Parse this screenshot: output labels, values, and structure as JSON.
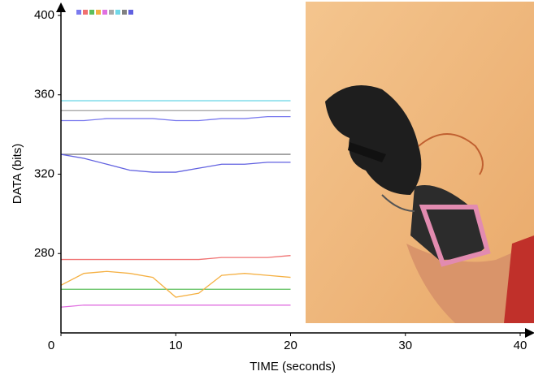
{
  "chart_data": {
    "type": "line",
    "x_label": "TIME (seconds)",
    "y_label": "DATA (bits)",
    "x": [
      0,
      2,
      4,
      6,
      8,
      10,
      12,
      14,
      16,
      18,
      20
    ],
    "series": [
      {
        "color": "#7b7bef",
        "values": [
          347,
          347,
          348,
          348,
          348,
          347,
          347,
          348,
          348,
          349,
          349
        ]
      },
      {
        "color": "#f07070",
        "values": [
          277,
          277,
          277,
          277,
          277,
          277,
          277,
          278,
          278,
          278,
          279
        ]
      },
      {
        "color": "#5cbf5c",
        "values": [
          262,
          262,
          262,
          262,
          262,
          262,
          262,
          262,
          262,
          262,
          262
        ]
      },
      {
        "color": "#f5b042",
        "values": [
          264,
          270,
          271,
          270,
          268,
          258,
          260,
          269,
          270,
          269,
          268
        ]
      },
      {
        "color": "#e070e0",
        "values": [
          253,
          254,
          254,
          254,
          254,
          254,
          254,
          254,
          254,
          254,
          254
        ]
      },
      {
        "color": "#a8a8a8",
        "values": [
          352,
          352,
          352,
          352,
          352,
          352,
          352,
          352,
          352,
          352,
          352
        ]
      },
      {
        "color": "#70d8e8",
        "values": [
          357,
          357,
          357,
          357,
          357,
          357,
          357,
          357,
          357,
          357,
          357
        ]
      },
      {
        "color": "#808080",
        "values": [
          330,
          330,
          330,
          330,
          330,
          330,
          330,
          330,
          330,
          330,
          330
        ]
      },
      {
        "color": "#6060e0",
        "values": [
          330,
          328,
          325,
          322,
          321,
          321,
          323,
          325,
          325,
          326,
          326
        ]
      }
    ],
    "xlim": [
      0,
      40
    ],
    "ylim": [
      240,
      400
    ],
    "xticks": [
      0,
      10,
      20,
      30,
      40
    ],
    "yticks": [
      280,
      320,
      360,
      400
    ]
  }
}
